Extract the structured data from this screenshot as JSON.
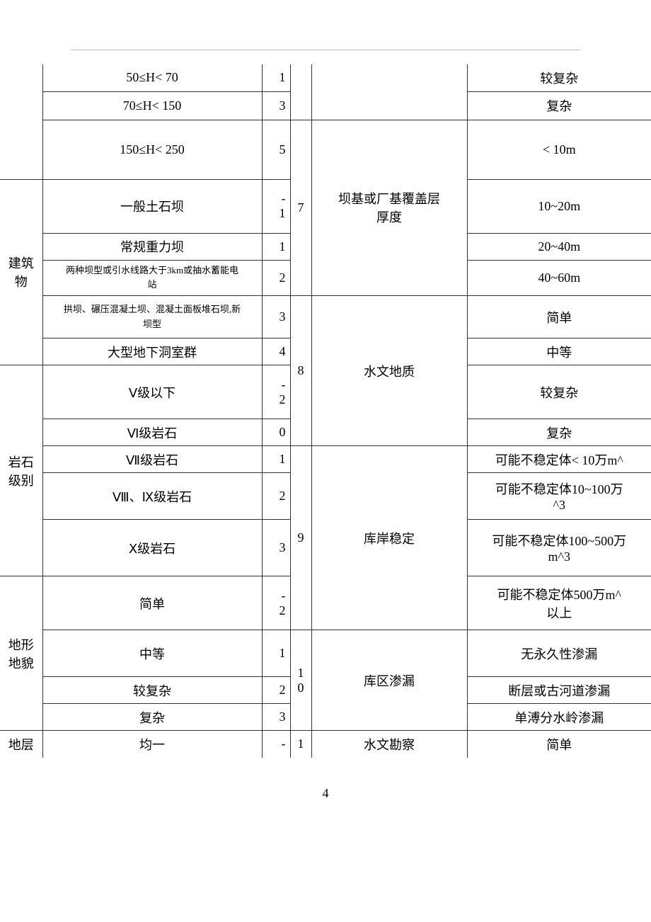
{
  "page_number": "4",
  "left_groups": {
    "g_prev": {
      "rows": [
        {
          "label": "50≤H< 70",
          "score": "1"
        },
        {
          "label": "70≤H< 150",
          "score": "3"
        },
        {
          "label": "150≤H< 250",
          "score": "5"
        }
      ]
    },
    "building": {
      "title": "建筑\n物",
      "rows": [
        {
          "label": "一般土石坝",
          "score": "-\n1"
        },
        {
          "label": "常规重力坝",
          "score": "1"
        },
        {
          "label": "两种坝型或引水线路大于3km或抽水蓄能电\n站",
          "score": "2",
          "small": true
        },
        {
          "label": "拱坝、碾压混凝土坝、混凝土面板堆石坝,新\n坝型",
          "score": "3",
          "small": true
        },
        {
          "label": "大型地下洞室群",
          "score": "4"
        }
      ]
    },
    "rock": {
      "title": "岩石\n级别",
      "rows": [
        {
          "label": "Ⅴ级以下",
          "score": "-\n2"
        },
        {
          "label": "Ⅵ级岩石",
          "score": "0"
        },
        {
          "label": "Ⅶ级岩石",
          "score": "1"
        },
        {
          "label": "Ⅷ、Ⅸ级岩石",
          "score": "2"
        },
        {
          "label": "Ⅹ级岩石",
          "score": "3"
        }
      ]
    },
    "terrain": {
      "title": "地形\n地貌",
      "rows": [
        {
          "label": "简单",
          "score": "-\n2"
        },
        {
          "label": "中等",
          "score": "1"
        },
        {
          "label": "较复杂",
          "score": "2"
        },
        {
          "label": "复杂",
          "score": "3"
        }
      ]
    },
    "stratum": {
      "title": "地层",
      "rows": [
        {
          "label": "均一",
          "score": "-"
        }
      ]
    }
  },
  "right_groups": {
    "g_prev": {
      "rows": [
        {
          "label": "较复杂"
        },
        {
          "label": "复杂"
        }
      ]
    },
    "cover": {
      "no": "7",
      "title": "坝基或厂基覆盖层\n厚度",
      "rows": [
        {
          "label": "< 10m"
        },
        {
          "label": "10~20m"
        },
        {
          "label": "20~40m"
        },
        {
          "label": "40~60m"
        }
      ]
    },
    "hydrogeo": {
      "no": "8",
      "title": "水文地质",
      "rows": [
        {
          "label": "简单"
        },
        {
          "label": "中等"
        },
        {
          "label": "较复杂"
        },
        {
          "label": "复杂"
        }
      ]
    },
    "bank": {
      "no": "9",
      "title": "库岸稳定",
      "rows": [
        {
          "label": "可能不稳定体< 10万m^"
        },
        {
          "label": "可能不稳定体10~100万\n^3"
        },
        {
          "label": "可能不稳定体100~500万\nm^3"
        },
        {
          "label": "可能不稳定体500万m^\n以上"
        }
      ]
    },
    "leak": {
      "no": "1\n0",
      "title": "库区渗漏",
      "rows": [
        {
          "label": "无永久性渗漏"
        },
        {
          "label": "断层或古河道渗漏"
        },
        {
          "label": "单溥分水岭渗漏"
        }
      ]
    },
    "survey": {
      "no": "1",
      "title": "水文勘察",
      "rows": [
        {
          "label": "简单"
        }
      ]
    }
  },
  "row_heights": {
    "r1": 38,
    "r2": 40,
    "r3": 84,
    "r4": 76,
    "r5": 38,
    "r6": 50,
    "r7": 60,
    "r8": 38,
    "r9": 76,
    "r10": 38,
    "r11": 38,
    "r12": 66,
    "r13": 80,
    "r14": 76,
    "r15": 66,
    "r16": 38,
    "r17": 38,
    "r18": 38
  }
}
